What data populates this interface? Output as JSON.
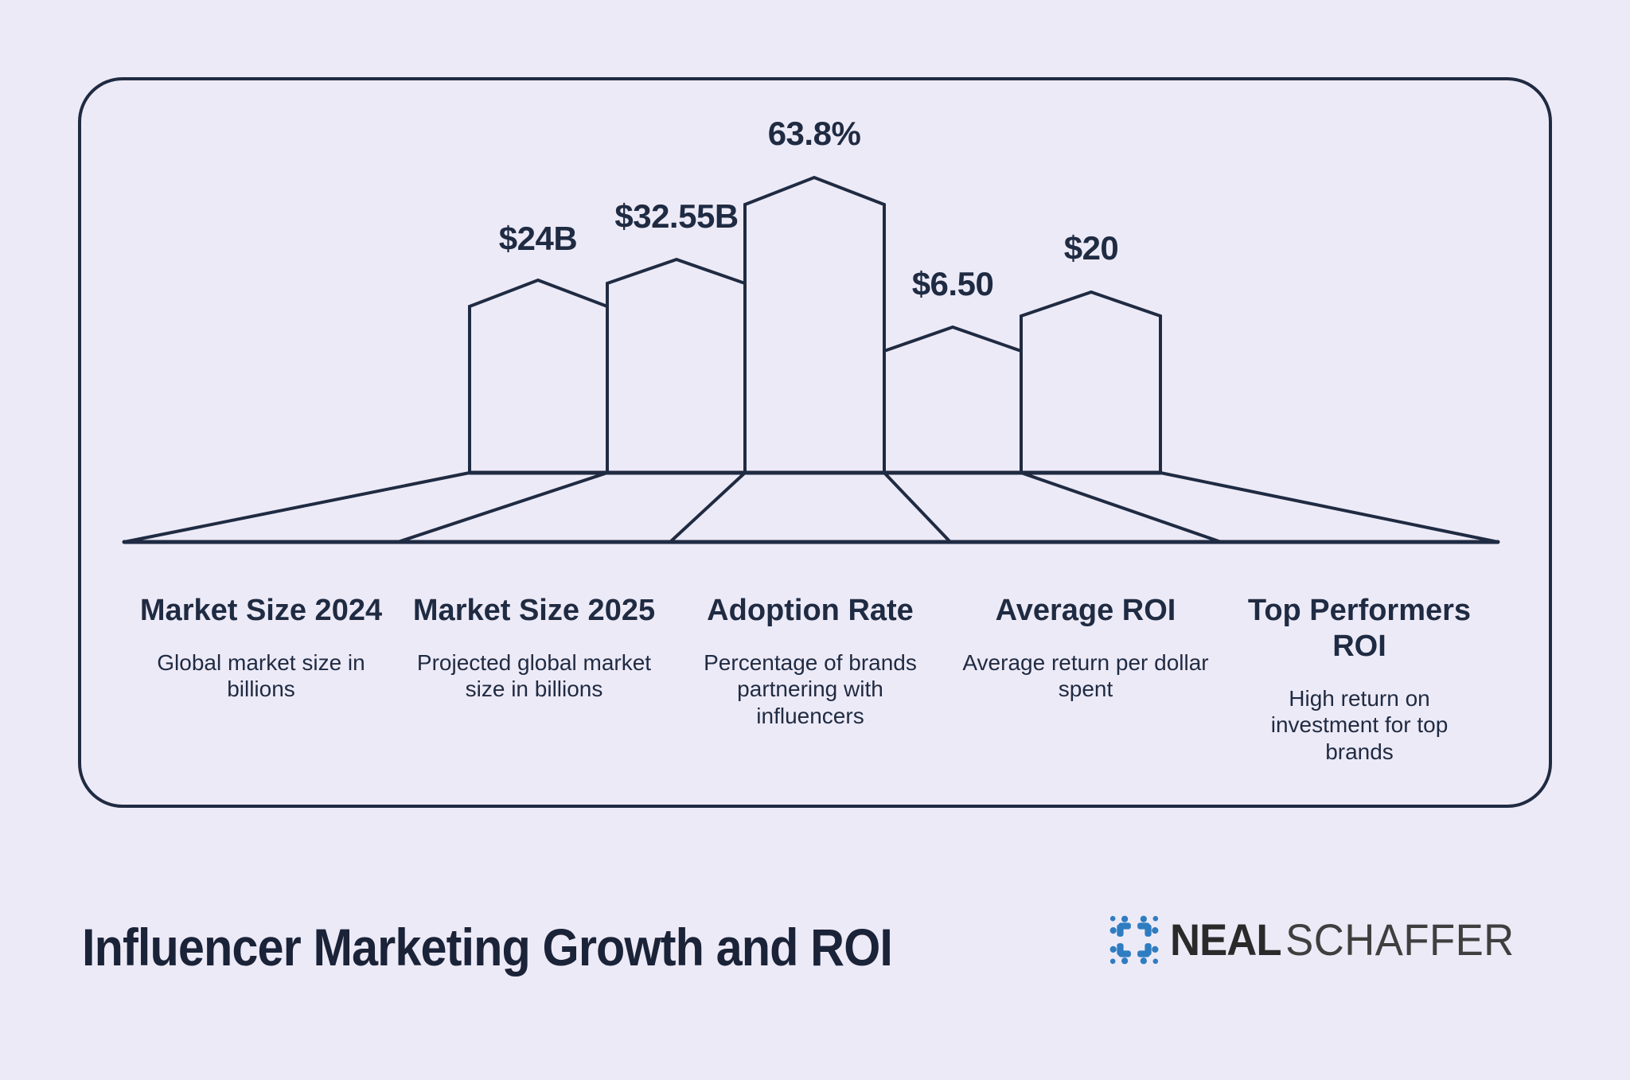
{
  "page": {
    "background_color": "#edeaf7",
    "line_color": "#1f2b42",
    "text_color": "#1f2b42"
  },
  "chart_data": {
    "type": "bar",
    "style": "stylized-skyline-infographic",
    "title": "Influencer Marketing Growth and ROI",
    "categories": [
      "Market Size 2024",
      "Market Size 2025",
      "Adoption Rate",
      "Average ROI",
      "Top Performers ROI"
    ],
    "values": [
      24,
      32.55,
      63.8,
      6.5,
      20
    ],
    "value_labels": [
      "$24B",
      "$32.55B",
      "63.8%",
      "$6.50",
      "$20"
    ],
    "bars": [
      {
        "label": "Market Size 2024",
        "value": 24,
        "value_label": "$24B",
        "description": "Global market size in billions"
      },
      {
        "label": "Market Size 2025",
        "value": 32.55,
        "value_label": "$32.55B",
        "description": "Projected global market size in billions"
      },
      {
        "label": "Adoption Rate",
        "value": 63.8,
        "value_label": "63.8%",
        "description": "Percentage of brands partnering with influencers"
      },
      {
        "label": "Average ROI",
        "value": 6.5,
        "value_label": "$6.50",
        "description": "Average return per dollar spent"
      },
      {
        "label": "Top Performers ROI",
        "value": 20,
        "value_label": "$20",
        "description": "High return on investment for top brands"
      }
    ],
    "legend": "none",
    "grid": "off",
    "axes": "none"
  },
  "footer": {
    "title": "Influencer Marketing Growth and ROI",
    "brand": {
      "first": "NEAL",
      "second": "SCHAFFER",
      "icon": "people-around-table-icon",
      "icon_color": "#2e7dc1"
    }
  }
}
